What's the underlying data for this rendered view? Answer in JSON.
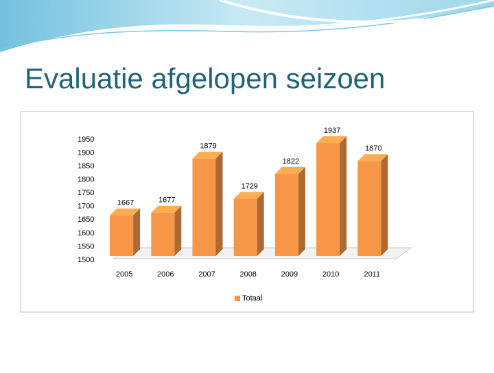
{
  "chart_data": {
    "type": "bar3d",
    "title": "Evaluatie afgelopen seizoen",
    "categories": [
      "2005",
      "2006",
      "2007",
      "2008",
      "2009",
      "2010",
      "2011"
    ],
    "series": [
      {
        "name": "Totaal",
        "color": "#f79646",
        "values": [
          1667,
          1677,
          1879,
          1729,
          1822,
          1937,
          1870
        ]
      }
    ],
    "ylim": [
      1500,
      1950
    ],
    "yticks": [
      1500,
      1550,
      1600,
      1650,
      1700,
      1750,
      1800,
      1850,
      1900,
      1950
    ],
    "grid": false,
    "legend": "bottom"
  }
}
